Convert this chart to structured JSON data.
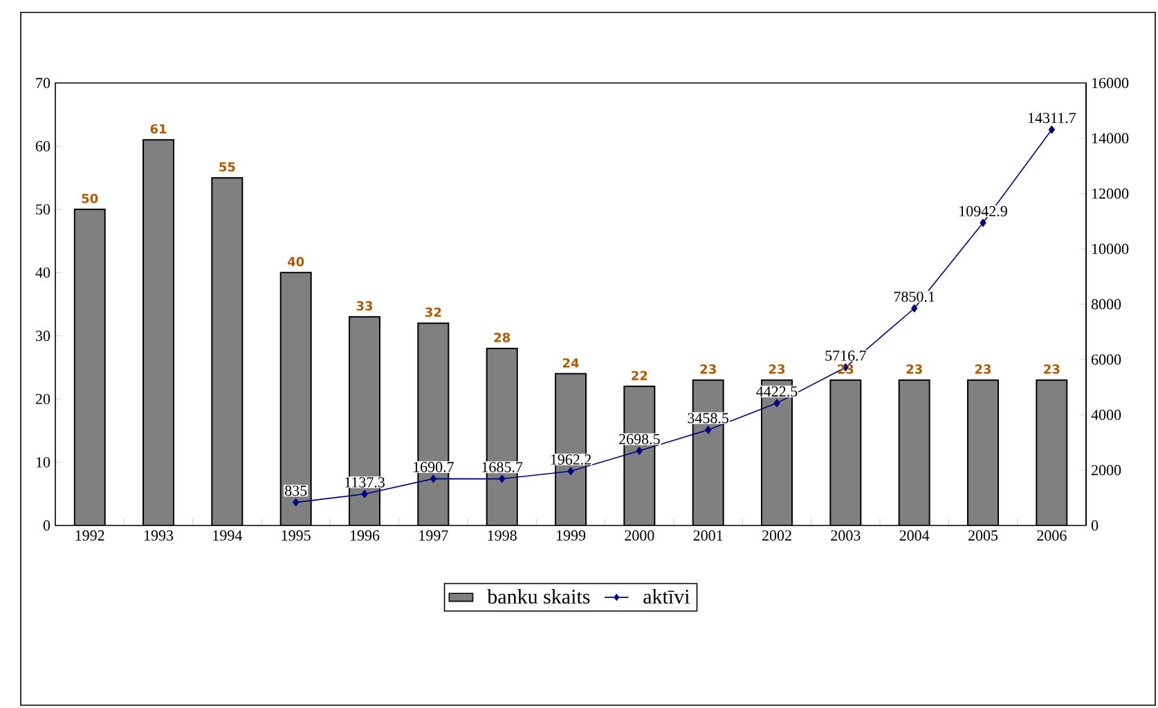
{
  "chart_data": {
    "type": "bar",
    "categories": [
      "1992",
      "1993",
      "1994",
      "1995",
      "1996",
      "1997",
      "1998",
      "1999",
      "2000",
      "2001",
      "2002",
      "2003",
      "2004",
      "2005",
      "2006"
    ],
    "series": [
      {
        "name": "banku skaits",
        "color": "#808080",
        "values": [
          50,
          61,
          55,
          40,
          33,
          32,
          28,
          24,
          22,
          23,
          23,
          23,
          23,
          23,
          23
        ],
        "value_labels": [
          "50",
          "61",
          "55",
          "40",
          "33",
          "32",
          "28",
          "24",
          "22",
          "23",
          "23",
          "23",
          "23",
          "23",
          "23"
        ]
      },
      {
        "name": "aktīvi",
        "type": "line",
        "axis": "y2",
        "color": "#000080",
        "marker": "diamond",
        "values": [
          null,
          null,
          null,
          835,
          1137.3,
          1690.7,
          1685.7,
          1962.2,
          2698.5,
          3458.5,
          4422.5,
          5716.7,
          7850.1,
          10942.9,
          14311.7
        ],
        "value_labels": [
          null,
          null,
          null,
          "835",
          "1137.3",
          "1690.7",
          "1685.7",
          "1962.2",
          "2698.5",
          "3458.5",
          "4422.5",
          "5716.7",
          "7850.1",
          "10942.9",
          "14311.7"
        ]
      }
    ],
    "ylim": [
      0,
      70
    ],
    "yticks": [
      0,
      10,
      20,
      30,
      40,
      50,
      60,
      70
    ],
    "y2lim": [
      0,
      16000
    ],
    "y2ticks": [
      0,
      2000,
      4000,
      6000,
      8000,
      10000,
      12000,
      14000,
      16000
    ],
    "grid": false,
    "legend": "bottom"
  }
}
